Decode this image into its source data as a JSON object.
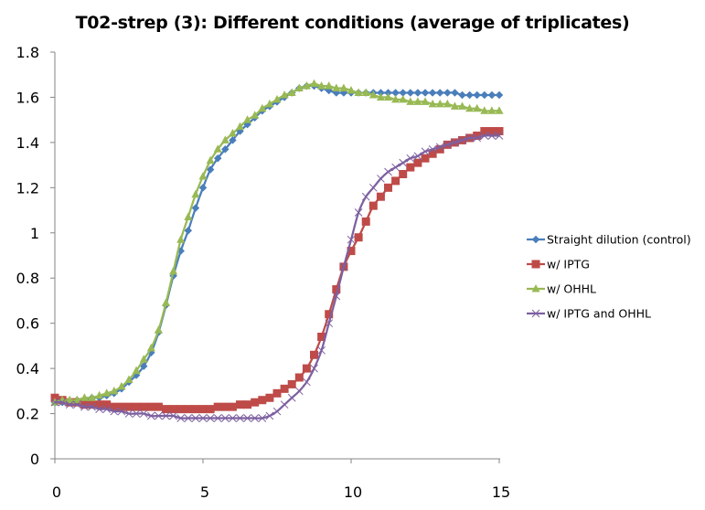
{
  "chart_data": {
    "type": "line",
    "title": "T02-strep (3): Different conditions (average of triplicates)",
    "xlabel": "",
    "ylabel": "",
    "xlim": [
      0,
      15
    ],
    "ylim": [
      0,
      1.8
    ],
    "x_ticks": [
      0,
      5,
      10,
      15
    ],
    "x_tick_labels": [
      "0",
      "5",
      "10",
      "15"
    ],
    "y_ticks": [
      0,
      0.2,
      0.4,
      0.6,
      0.8,
      1.0,
      1.2,
      1.4,
      1.6,
      1.8
    ],
    "y_tick_labels": [
      "0",
      "0.2",
      "0.4",
      "0.6",
      "0.8",
      "1",
      "1.2",
      "1.4",
      "1.6",
      "1.8"
    ],
    "grid": false,
    "legend_position": "right",
    "x": [
      0,
      0.25,
      0.5,
      0.75,
      1,
      1.25,
      1.5,
      1.75,
      2,
      2.25,
      2.5,
      2.75,
      3,
      3.25,
      3.5,
      3.75,
      4,
      4.25,
      4.5,
      4.75,
      5,
      5.25,
      5.5,
      5.75,
      6,
      6.25,
      6.5,
      6.75,
      7,
      7.25,
      7.5,
      7.75,
      8,
      8.25,
      8.5,
      8.75,
      9,
      9.25,
      9.5,
      9.75,
      10,
      10.25,
      10.5,
      10.75,
      11,
      11.25,
      11.5,
      11.75,
      12,
      12.25,
      12.5,
      12.75,
      13,
      13.25,
      13.5,
      13.75,
      14,
      14.25,
      14.5,
      14.75,
      15
    ],
    "series": [
      {
        "name": "Straight dilution (control)",
        "color": "#4A7EBB",
        "marker": "diamond",
        "values": [
          0.25,
          0.25,
          0.25,
          0.26,
          0.26,
          0.27,
          0.27,
          0.28,
          0.29,
          0.31,
          0.34,
          0.37,
          0.41,
          0.47,
          0.56,
          0.68,
          0.81,
          0.92,
          1.01,
          1.11,
          1.2,
          1.28,
          1.33,
          1.37,
          1.41,
          1.45,
          1.48,
          1.51,
          1.54,
          1.56,
          1.58,
          1.6,
          1.62,
          1.64,
          1.65,
          1.65,
          1.64,
          1.63,
          1.62,
          1.62,
          1.62,
          1.62,
          1.62,
          1.62,
          1.62,
          1.62,
          1.62,
          1.62,
          1.62,
          1.62,
          1.62,
          1.62,
          1.62,
          1.62,
          1.62,
          1.61,
          1.61,
          1.61,
          1.61,
          1.61,
          1.61
        ]
      },
      {
        "name": "w/ IPTG",
        "color": "#BE4B48",
        "marker": "square",
        "values": [
          0.27,
          0.26,
          0.25,
          0.25,
          0.24,
          0.24,
          0.24,
          0.24,
          0.23,
          0.23,
          0.23,
          0.23,
          0.23,
          0.23,
          0.23,
          0.22,
          0.22,
          0.22,
          0.22,
          0.22,
          0.22,
          0.22,
          0.23,
          0.23,
          0.23,
          0.24,
          0.24,
          0.25,
          0.26,
          0.27,
          0.29,
          0.31,
          0.33,
          0.36,
          0.4,
          0.46,
          0.54,
          0.64,
          0.75,
          0.85,
          0.92,
          0.98,
          1.05,
          1.12,
          1.16,
          1.2,
          1.23,
          1.26,
          1.29,
          1.31,
          1.33,
          1.35,
          1.37,
          1.39,
          1.4,
          1.41,
          1.42,
          1.43,
          1.45,
          1.45,
          1.45
        ]
      },
      {
        "name": "w/ OHHL",
        "color": "#98B954",
        "marker": "triangle",
        "values": [
          0.25,
          0.26,
          0.26,
          0.26,
          0.27,
          0.27,
          0.28,
          0.29,
          0.3,
          0.32,
          0.35,
          0.39,
          0.44,
          0.49,
          0.57,
          0.69,
          0.83,
          0.97,
          1.07,
          1.17,
          1.25,
          1.32,
          1.37,
          1.41,
          1.44,
          1.47,
          1.5,
          1.52,
          1.55,
          1.57,
          1.59,
          1.61,
          1.62,
          1.64,
          1.65,
          1.66,
          1.65,
          1.65,
          1.64,
          1.64,
          1.63,
          1.62,
          1.62,
          1.61,
          1.6,
          1.6,
          1.59,
          1.59,
          1.58,
          1.58,
          1.58,
          1.57,
          1.57,
          1.57,
          1.56,
          1.56,
          1.55,
          1.55,
          1.54,
          1.54,
          1.54
        ]
      },
      {
        "name": "w/ IPTG and OHHL",
        "color": "#7D60A0",
        "marker": "x",
        "values": [
          0.25,
          0.25,
          0.24,
          0.24,
          0.23,
          0.23,
          0.22,
          0.22,
          0.21,
          0.21,
          0.2,
          0.2,
          0.2,
          0.19,
          0.19,
          0.19,
          0.19,
          0.18,
          0.18,
          0.18,
          0.18,
          0.18,
          0.18,
          0.18,
          0.18,
          0.18,
          0.18,
          0.18,
          0.18,
          0.19,
          0.21,
          0.24,
          0.27,
          0.3,
          0.34,
          0.4,
          0.48,
          0.6,
          0.72,
          0.85,
          0.97,
          1.09,
          1.16,
          1.2,
          1.24,
          1.27,
          1.29,
          1.31,
          1.33,
          1.34,
          1.36,
          1.37,
          1.38,
          1.39,
          1.4,
          1.41,
          1.42,
          1.42,
          1.43,
          1.43,
          1.43
        ]
      }
    ]
  }
}
